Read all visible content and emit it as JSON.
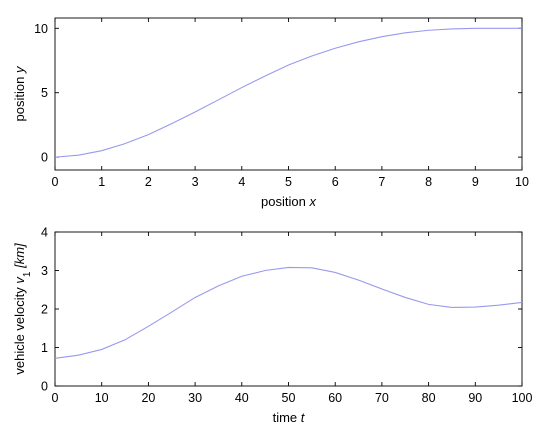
{
  "chart_data": [
    {
      "type": "line",
      "xlabel": "position",
      "xlabel_var": "x",
      "ylabel": "position",
      "ylabel_var": "y",
      "xlim": [
        0,
        10
      ],
      "ylim": [
        -1,
        10.8
      ],
      "xticks": [
        0,
        1,
        2,
        3,
        4,
        5,
        6,
        7,
        8,
        9,
        10
      ],
      "yticks": [
        0,
        5,
        10
      ],
      "grid": false,
      "colors": {
        "line": "#9999ee",
        "axes": "#000000"
      },
      "series": [
        {
          "x": [
            0,
            0.5,
            1,
            1.5,
            2,
            2.5,
            3,
            3.5,
            4,
            4.5,
            5,
            5.5,
            6,
            6.5,
            7,
            7.5,
            8,
            8.5,
            9,
            9.5,
            10
          ],
          "y": [
            0,
            0.15,
            0.5,
            1.05,
            1.75,
            2.6,
            3.5,
            4.45,
            5.4,
            6.3,
            7.15,
            7.85,
            8.45,
            8.95,
            9.35,
            9.65,
            9.85,
            9.95,
            10.0,
            10.0,
            10.0
          ]
        }
      ]
    },
    {
      "type": "line",
      "xlabel": "time",
      "xlabel_var": "t",
      "ylabel": "vehicle velocity",
      "ylabel_var": "v",
      "ylabel_sub": "1",
      "ylabel_unit": "[km]",
      "xlim": [
        0,
        100
      ],
      "ylim": [
        0,
        4
      ],
      "xticks": [
        0,
        10,
        20,
        30,
        40,
        50,
        60,
        70,
        80,
        90,
        100
      ],
      "yticks": [
        0,
        1,
        2,
        3,
        4
      ],
      "grid": false,
      "colors": {
        "line": "#9999ee",
        "axes": "#000000"
      },
      "series": [
        {
          "x": [
            0,
            5,
            10,
            15,
            20,
            25,
            30,
            35,
            40,
            45,
            50,
            55,
            60,
            65,
            70,
            75,
            80,
            85,
            90,
            95,
            100
          ],
          "y": [
            0.72,
            0.8,
            0.95,
            1.2,
            1.55,
            1.92,
            2.3,
            2.6,
            2.85,
            3.0,
            3.08,
            3.07,
            2.95,
            2.75,
            2.52,
            2.3,
            2.12,
            2.04,
            2.05,
            2.1,
            2.17
          ]
        }
      ]
    }
  ]
}
